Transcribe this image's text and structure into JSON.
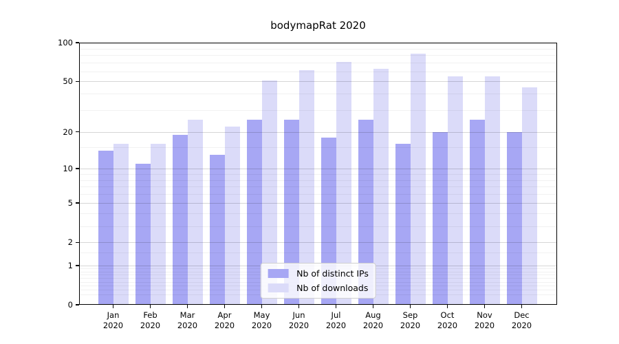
{
  "title": "bodymapRat 2020",
  "chart_data": {
    "type": "bar",
    "title": "bodymapRat 2020",
    "x_tick_months": [
      "Jan",
      "Feb",
      "Mar",
      "Apr",
      "May",
      "Jun",
      "Jul",
      "Aug",
      "Sep",
      "Oct",
      "Nov",
      "Dec"
    ],
    "x_tick_year": "2020",
    "categories": [
      "Jan 2020",
      "Feb 2020",
      "Mar 2020",
      "Apr 2020",
      "May 2020",
      "Jun 2020",
      "Jul 2020",
      "Aug 2020",
      "Sep 2020",
      "Oct 2020",
      "Nov 2020",
      "Dec 2020"
    ],
    "series": [
      {
        "name": "Nb of distinct IPs",
        "color": "#a7a7f4",
        "values": [
          14,
          11,
          19,
          13,
          25,
          25,
          18,
          25,
          16,
          20,
          25,
          20
        ]
      },
      {
        "name": "Nb of downloads",
        "color": "#dbdbf9",
        "values": [
          16,
          16,
          25,
          22,
          51,
          61,
          71,
          63,
          82,
          55,
          55,
          45
        ]
      }
    ],
    "y_scale": "log1p",
    "ylim": [
      0,
      100
    ],
    "y_major_ticks": [
      100,
      50,
      20,
      10,
      5,
      2,
      1,
      0
    ],
    "y_minor_gridlines": [
      0.2,
      0.3,
      0.4,
      0.5,
      0.6,
      0.7,
      0.8,
      0.9,
      1.5,
      3,
      4,
      6,
      7,
      8,
      9,
      15,
      30,
      40,
      60,
      70,
      80,
      90
    ],
    "grid": true,
    "legend_position": "lower center",
    "frame_color": "#000000",
    "background_color": "#ffffff"
  },
  "legend": {
    "items": [
      {
        "label": "Nb of distinct IPs",
        "color": "#a7a7f4"
      },
      {
        "label": "Nb of downloads",
        "color": "#dbdbf9"
      }
    ]
  }
}
